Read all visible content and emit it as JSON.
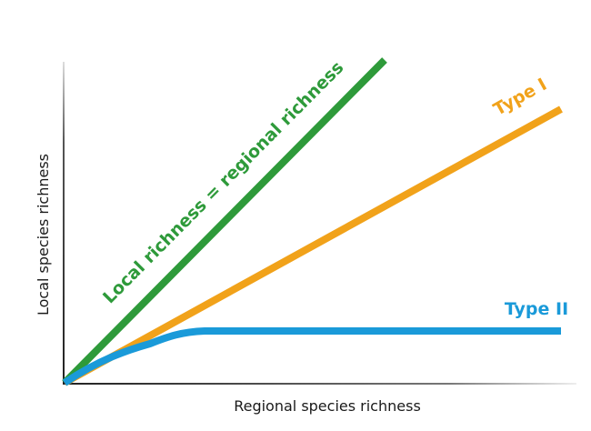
{
  "diagram": {
    "x_axis_label": "Regional species richness",
    "y_axis_label": "Local species richness",
    "curves": [
      {
        "label": "Local richness = regional richness"
      },
      {
        "label": "Type I"
      },
      {
        "label": "Type II"
      }
    ]
  }
}
